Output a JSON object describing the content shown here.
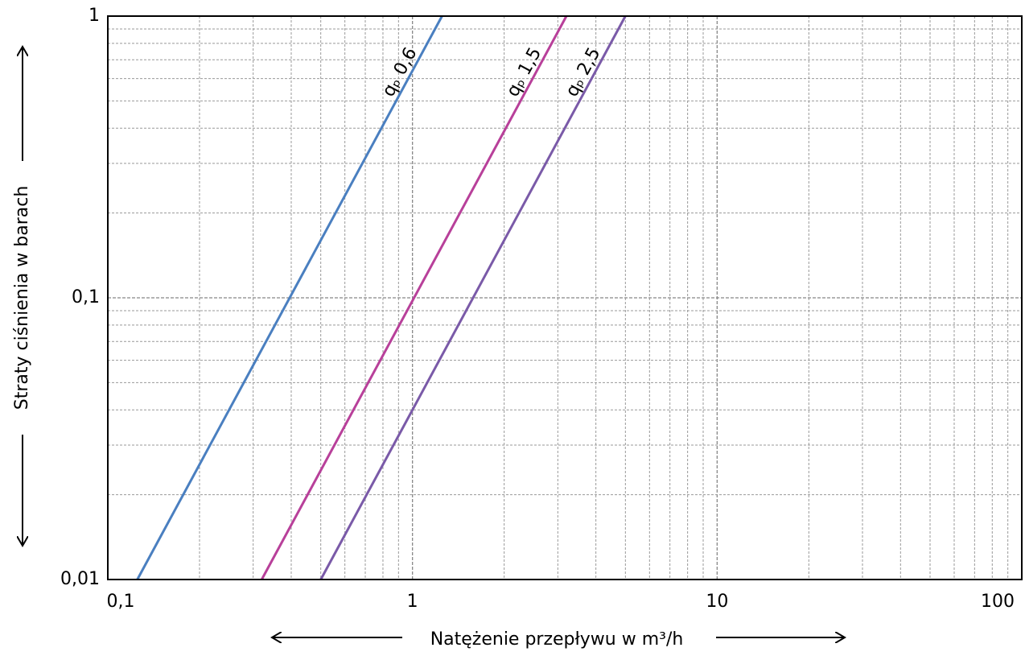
{
  "chart_data": {
    "type": "line",
    "x_label": "Natężenie przepływu w m³/h",
    "y_label": "Straty ciśnienia w barach",
    "log_x": true,
    "log_y": true,
    "grid": true,
    "xlim": [
      0.1,
      100
    ],
    "ylim": [
      0.01,
      1
    ],
    "xticks": [
      {
        "value": 0.1,
        "label": "0,1"
      },
      1,
      10,
      100
    ],
    "yticks": [
      {
        "value": 0.01,
        "label": "0,01"
      },
      {
        "value": 0.1,
        "label": "0,1"
      },
      1
    ],
    "series": [
      {
        "name": "qₚ 0,6",
        "color": "#4a7fc0",
        "x": [
          0.125,
          1.25
        ],
        "values": [
          0.01,
          1
        ]
      },
      {
        "name": "qₚ 1,5",
        "color": "#b8409a",
        "x": [
          0.32,
          3.2
        ],
        "values": [
          0.01,
          1
        ]
      },
      {
        "name": "qₚ 2,5",
        "color": "#7a5aa8",
        "x": [
          0.5,
          5
        ],
        "values": [
          0.01,
          1
        ]
      }
    ]
  }
}
